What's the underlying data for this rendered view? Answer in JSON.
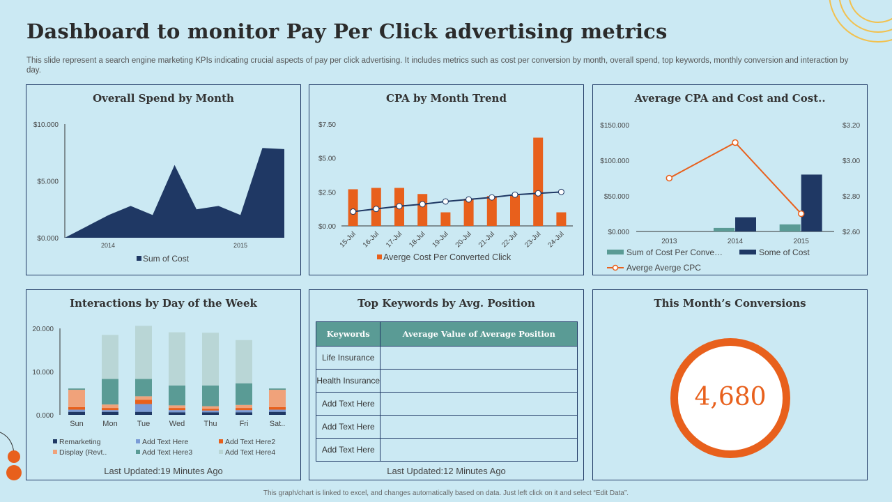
{
  "header": {
    "title": "Dashboard to monitor Pay Per Click advertising metrics",
    "subtitle": "This slide represent a search engine marketing KPIs indicating crucial aspects of pay per click advertising. It includes metrics such as cost per conversion by month, overall spend, top keywords, monthly conversion and interaction by day."
  },
  "footer": "This graph/chart is linked to excel, and changes automatically based on data. Just left click on it and select “Edit Data”.",
  "colors": {
    "navy": "#1f3864",
    "orange": "#e8601c",
    "teal": "#5a9b95",
    "background": "#cbe9f3"
  },
  "panels": {
    "spend": {
      "title": "Overall Spend by Month"
    },
    "cpa": {
      "title": "CPA by Month Trend"
    },
    "avg": {
      "title": "Average CPA and Cost and Cost.."
    },
    "interactions": {
      "title": "Interactions by Day of the Week",
      "updated": "Last Updated:19 Minutes Ago"
    },
    "keywords": {
      "title": "Top Keywords by Avg. Position",
      "updated": "Last Updated:12 Minutes Ago",
      "headers": [
        "Keywords",
        "Average Value of Average Position"
      ],
      "rows": [
        "Life Insurance",
        "Health Insurance",
        "Add Text Here",
        "Add Text Here",
        "Add Text Here"
      ]
    },
    "conversions": {
      "title": "This Month’s Conversions",
      "value": "4,680"
    }
  },
  "chart_data": [
    {
      "id": "spend",
      "type": "area",
      "x_ticks": [
        "2014",
        "2015"
      ],
      "y_ticks": [
        "$0.000",
        "$5.000",
        "$10.000"
      ],
      "ylim": [
        0,
        10
      ],
      "series": [
        {
          "name": "Sum of Cost",
          "values": [
            0,
            1.0,
            2.0,
            2.8,
            2.0,
            6.4,
            2.5,
            2.8,
            2.0,
            7.9,
            7.8
          ]
        }
      ],
      "legend": "bottom"
    },
    {
      "id": "cpa",
      "type": "bar+line",
      "categories": [
        "15-Jul",
        "16-Jul",
        "17-Jul",
        "18-Jul",
        "19-Jul",
        "20-Jul",
        "21-Jul",
        "22-Jul",
        "23-Jul",
        "24-Jul"
      ],
      "y_ticks": [
        "$0.00",
        "$2.50",
        "$5.00",
        "$7.50"
      ],
      "ylim": [
        0,
        7.5
      ],
      "series": [
        {
          "name": "Averge Cost Per Converted Click",
          "type": "bar",
          "values": [
            2.7,
            2.8,
            2.8,
            2.35,
            1.0,
            2.0,
            2.2,
            2.25,
            6.5,
            1.0
          ]
        },
        {
          "type": "line",
          "values": [
            1.05,
            1.25,
            1.45,
            1.6,
            1.8,
            1.95,
            2.1,
            2.3,
            2.4,
            2.5
          ]
        }
      ],
      "legend": "bottom"
    },
    {
      "id": "avg",
      "type": "bar+line",
      "categories": [
        "2013",
        "2014",
        "2015"
      ],
      "y_ticks": [
        "$0.000",
        "$50.000",
        "$100.000",
        "$150.000"
      ],
      "y2_ticks": [
        "$2.60",
        "$2.80",
        "$3.00",
        "$3.20"
      ],
      "ylim": [
        0,
        150
      ],
      "y2lim": [
        2.6,
        3.2
      ],
      "series": [
        {
          "name": "Sum of Cost Per Conve…",
          "type": "bar",
          "values": [
            0,
            5,
            10
          ]
        },
        {
          "name": "Some of Cost",
          "type": "bar",
          "values": [
            0,
            20,
            80
          ]
        },
        {
          "name": "Averge Averge CPC",
          "type": "line",
          "axis": "y2",
          "values": [
            2.9,
            3.1,
            2.7
          ]
        }
      ],
      "legend": "bottom"
    },
    {
      "id": "interactions",
      "type": "bar",
      "stacked": true,
      "categories": [
        "Sun",
        "Mon",
        "Tue",
        "Wed",
        "Thu",
        "Fri",
        "Sat.."
      ],
      "y_ticks": [
        "0.000",
        "10.000",
        "20.000"
      ],
      "ylim": [
        0,
        20
      ],
      "series": [
        {
          "name": "Remarketing",
          "values": [
            0.7,
            0.7,
            0.7,
            0.6,
            0.6,
            0.6,
            0.7
          ]
        },
        {
          "name": "Add Text Here",
          "values": [
            0.5,
            0.4,
            1.8,
            0.5,
            0.4,
            0.5,
            0.5
          ]
        },
        {
          "name": "Add Text Here2",
          "values": [
            0.6,
            0.5,
            1.0,
            0.5,
            0.4,
            0.5,
            0.6
          ]
        },
        {
          "name": "Display (Revt..",
          "values": [
            4.0,
            0.8,
            0.8,
            0.6,
            0.6,
            0.7,
            4.0
          ]
        },
        {
          "name": "Add Text Here3",
          "values": [
            0.3,
            5.9,
            4.0,
            4.6,
            4.8,
            5.0,
            0.3
          ]
        },
        {
          "name": "Add Text Here4",
          "values": [
            0,
            10.2,
            12.3,
            12.3,
            12.2,
            10.0,
            0
          ]
        }
      ],
      "legend": "bottom"
    }
  ]
}
